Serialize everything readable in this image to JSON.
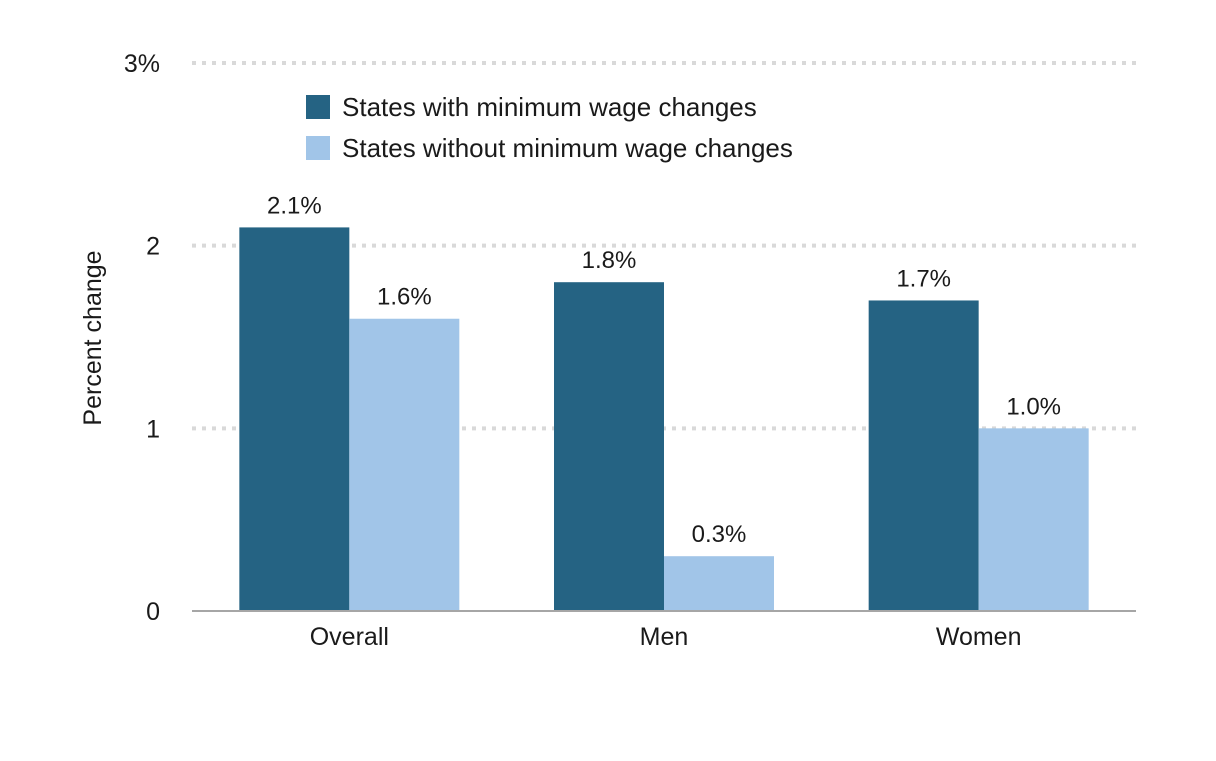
{
  "chart_data": {
    "type": "bar",
    "title": "",
    "xlabel": "",
    "ylabel": "Percent change",
    "categories": [
      "Overall",
      "Men",
      "Women"
    ],
    "series": [
      {
        "name": "States with minimum wage changes",
        "values": [
          2.1,
          1.8,
          1.7
        ],
        "labels": [
          "2.1%",
          "1.8%",
          "1.7%"
        ],
        "color": "#256383"
      },
      {
        "name": "States without minimum wage changes",
        "values": [
          1.6,
          0.3,
          1.0
        ],
        "labels": [
          "1.6%",
          "0.3%",
          "1.0%"
        ],
        "color": "#a1c5e8"
      }
    ],
    "ylim": [
      0,
      3
    ],
    "yticks": [
      0,
      1,
      2,
      3
    ],
    "ytick_labels": [
      "0",
      "1",
      "2",
      "3%"
    ],
    "grid": true,
    "legend_position": "top-left"
  }
}
